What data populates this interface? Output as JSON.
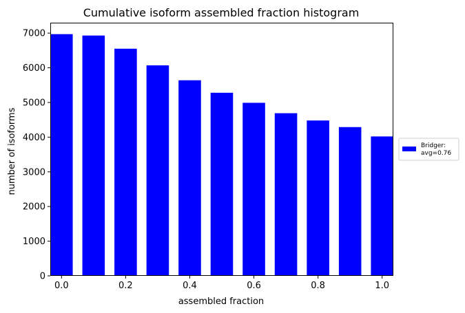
{
  "chart_data": {
    "type": "bar",
    "title": "Cumulative isoform assembled fraction histogram",
    "xlabel": "assembled fraction",
    "ylabel": "number of isoforms",
    "x": [
      0.0,
      0.1,
      0.2,
      0.3,
      0.4,
      0.5,
      0.6,
      0.7,
      0.8,
      0.9,
      1.0
    ],
    "series": [
      {
        "name": "Bridger: avg=0.76",
        "legend_lines": [
          "Bridger:",
          "avg=0.76"
        ],
        "color": "#0000ff",
        "values": [
          6970,
          6930,
          6550,
          6070,
          5640,
          5280,
          4990,
          4690,
          4480,
          4290,
          4020
        ]
      }
    ],
    "bar_width": 0.07,
    "xlim": [
      -0.035,
      1.035
    ],
    "ylim": [
      0,
      7300
    ],
    "xticks": [
      0.0,
      0.2,
      0.4,
      0.6,
      0.8,
      1.0
    ],
    "xtick_labels": [
      "0.0",
      "0.2",
      "0.4",
      "0.6",
      "0.8",
      "1.0"
    ],
    "yticks": [
      0,
      1000,
      2000,
      3000,
      4000,
      5000,
      6000,
      7000
    ],
    "ytick_labels": [
      "0",
      "1000",
      "2000",
      "3000",
      "4000",
      "5000",
      "6000",
      "7000"
    ],
    "grid": false,
    "legend_position": "outside-right"
  }
}
